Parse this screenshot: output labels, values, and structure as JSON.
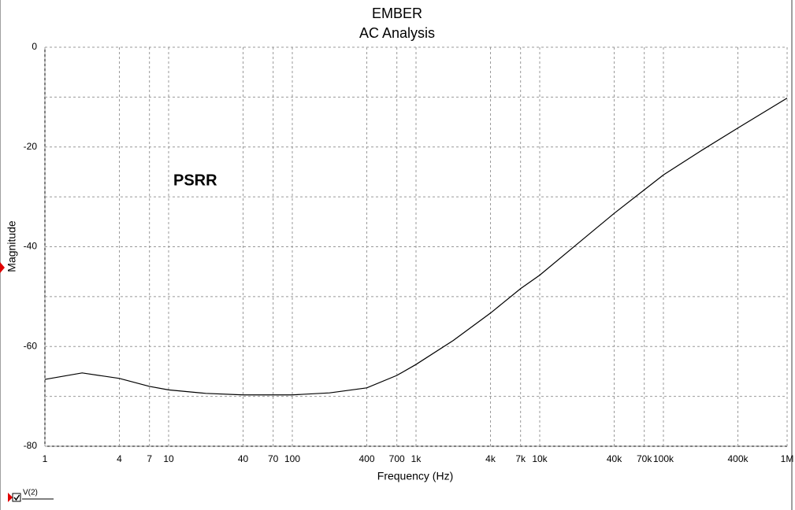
{
  "chart_data": {
    "type": "line",
    "title": "EMBER",
    "subtitle": "AC Analysis",
    "x_label": "Frequency (Hz)",
    "y_label": "Magnitude",
    "annotation": "PSRR",
    "log_x": true,
    "grid": true,
    "x": [
      1,
      2,
      4,
      7,
      10,
      20,
      40,
      100,
      200,
      400,
      700,
      1000,
      2000,
      4000,
      7000,
      10000,
      20000,
      40000,
      70000,
      100000,
      200000,
      400000,
      1000000
    ],
    "series": [
      {
        "name": "V(2)",
        "color": "#000000",
        "values": [
          -66.6,
          -65.3,
          -66.4,
          -68.0,
          -68.7,
          -69.4,
          -69.7,
          -69.7,
          -69.3,
          -68.3,
          -65.8,
          -63.6,
          -58.8,
          -53.3,
          -48.4,
          -45.7,
          -39.5,
          -33.3,
          -28.6,
          -25.6,
          -20.8,
          -16.2,
          -10.2
        ]
      }
    ],
    "xlim": [
      1,
      1000000
    ],
    "xticks": [
      1,
      4,
      7,
      10,
      40,
      70,
      100,
      400,
      700,
      {
        "value": 1000,
        "label": "1k"
      },
      {
        "value": 4000,
        "label": "4k"
      },
      {
        "value": 7000,
        "label": "7k"
      },
      {
        "value": 10000,
        "label": "10k"
      },
      {
        "value": 40000,
        "label": "40k"
      },
      {
        "value": 70000,
        "label": "70k"
      },
      {
        "value": 100000,
        "label": "100k"
      },
      {
        "value": 400000,
        "label": "400k"
      },
      {
        "value": 1000000,
        "label": "1M"
      }
    ],
    "ylim": [
      -80,
      0
    ],
    "yticks": [
      0,
      -20,
      -40,
      -60,
      -80
    ],
    "minor_yticks": [
      -10,
      -30,
      -50,
      -70
    ]
  }
}
